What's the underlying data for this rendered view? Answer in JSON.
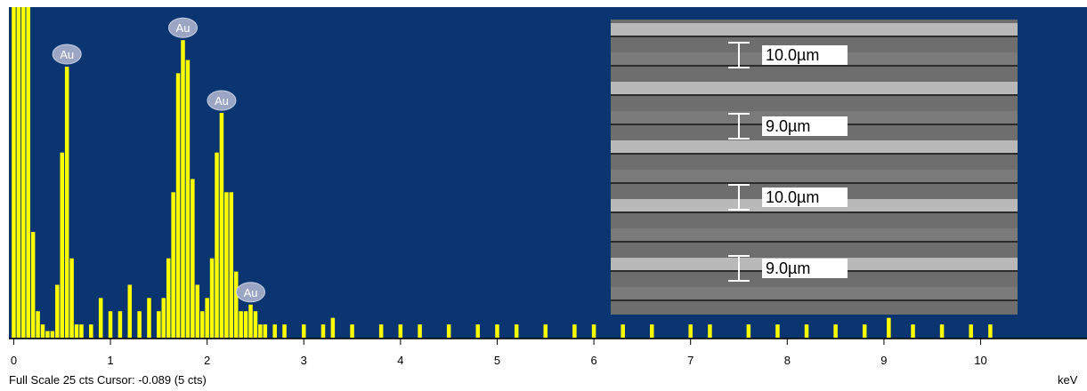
{
  "chart_data": {
    "type": "bar",
    "x_label": "keV",
    "footer": "Full Scale 25 cts Cursor: -0.089  (5 cts)",
    "x": [
      0.0,
      0.05,
      0.1,
      0.15,
      0.2,
      0.25,
      0.3,
      0.35,
      0.4,
      0.45,
      0.5,
      0.55,
      0.6,
      0.65,
      0.7,
      0.8,
      0.9,
      1.0,
      1.1,
      1.2,
      1.3,
      1.4,
      1.5,
      1.55,
      1.6,
      1.65,
      1.7,
      1.75,
      1.8,
      1.85,
      1.9,
      1.95,
      2.0,
      2.05,
      2.1,
      2.15,
      2.2,
      2.25,
      2.3,
      2.35,
      2.4,
      2.45,
      2.5,
      2.55,
      2.6,
      2.7,
      2.8,
      3.0,
      3.2,
      3.3,
      3.5,
      3.8,
      4.0,
      4.2,
      4.5,
      4.8,
      5.0,
      5.2,
      5.5,
      5.8,
      6.0,
      6.3,
      6.6,
      7.0,
      7.2,
      7.6,
      7.9,
      8.2,
      8.5,
      8.8,
      9.05,
      9.3,
      9.6,
      9.9,
      10.1
    ],
    "values": [
      25,
      25,
      25,
      25,
      8,
      2,
      1,
      0.5,
      0.5,
      4,
      14,
      20.5,
      6,
      1,
      1,
      1,
      3,
      2,
      2,
      4,
      2,
      3,
      2,
      3,
      6,
      11,
      20,
      22.5,
      21,
      12,
      4,
      2,
      3,
      6,
      14,
      17,
      11,
      11,
      5,
      2,
      2,
      2.5,
      2,
      1,
      1,
      1,
      1,
      1,
      1,
      1.5,
      1,
      1,
      1,
      1,
      1,
      1,
      1,
      1,
      1,
      1,
      1,
      1,
      1,
      1,
      1,
      1,
      1,
      1,
      1,
      1,
      1.5,
      1,
      1,
      1,
      1
    ],
    "color": "#ffff00",
    "background": "#0a3570",
    "xlim": [
      -0.05,
      11.1
    ],
    "ylim": [
      0,
      25
    ],
    "xticks": [
      0,
      1,
      2,
      3,
      4,
      5,
      6,
      7,
      8,
      9,
      10
    ],
    "annotations": [
      {
        "label": "Au",
        "x": 0.55,
        "y": 20.5
      },
      {
        "label": "Au",
        "x": 1.75,
        "y": 22.5
      },
      {
        "label": "Au",
        "x": 2.15,
        "y": 17
      },
      {
        "label": "Au",
        "x": 2.45,
        "y": 2.5
      }
    ],
    "inset_labels": [
      "10.0µm",
      "9.0µm",
      "10.0µm",
      "9.0µm"
    ]
  }
}
